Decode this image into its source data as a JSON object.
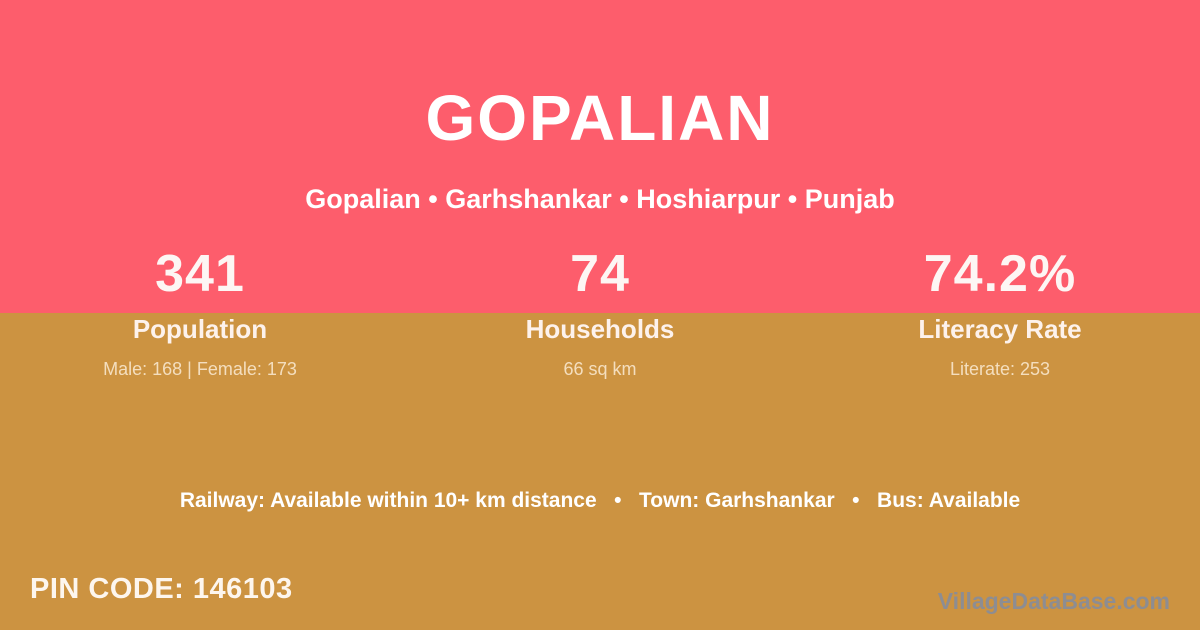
{
  "colors": {
    "top_background": "#fd5d6c",
    "bottom_background": "#cc9341",
    "text_primary": "#ffffff",
    "text_muted_cream": "#f2e2c4",
    "watermark_gray": "#8d8d92"
  },
  "header": {
    "title": "GOPALIAN",
    "subtitle": "Gopalian • Garhshankar • Hoshiarpur • Punjab"
  },
  "stats": [
    {
      "value": "341",
      "label": "Population",
      "detail": "Male: 168 | Female: 173"
    },
    {
      "value": "74",
      "label": "Households",
      "detail": "66 sq km"
    },
    {
      "value": "74.2%",
      "label": "Literacy Rate",
      "detail": "Literate: 253"
    }
  ],
  "info_line": "Railway: Available within 10+ km distance   •   Town: Garhshankar   •   Bus: Available",
  "footer": {
    "pin_code": "PIN CODE: 146103",
    "watermark": "VillageDataBase.com"
  }
}
